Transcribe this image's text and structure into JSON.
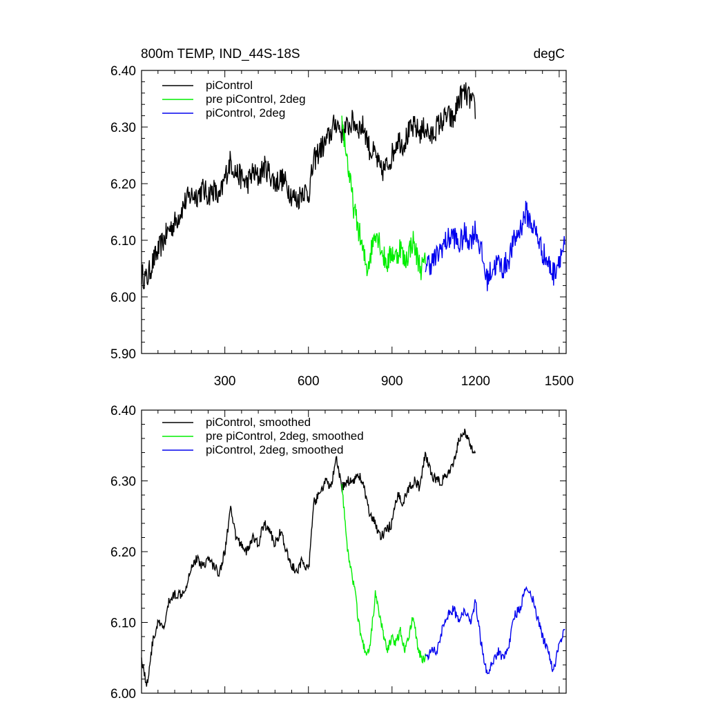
{
  "figure": {
    "title_left": "800m TEMP, IND_44S-18S",
    "title_right": "degC"
  },
  "colors": {
    "piControl": "#000000",
    "pre": "#00ee00",
    "twodeg": "#0000ee"
  },
  "chart_data": [
    {
      "type": "line",
      "title": "800m TEMP, IND_44S-18S",
      "units": "degC",
      "xlim": [
        1,
        1525
      ],
      "ylim": [
        5.9,
        6.4
      ],
      "xticks": [
        300,
        600,
        900,
        1200,
        1500
      ],
      "yticks": [
        "5.90",
        "6.00",
        "6.10",
        "6.20",
        "6.30",
        "6.40"
      ],
      "legend_position": "top-left",
      "series": [
        {
          "name": "piControl",
          "color": "#000000",
          "x": [
            1,
            20,
            40,
            60,
            80,
            100,
            120,
            140,
            160,
            180,
            200,
            220,
            240,
            260,
            280,
            300,
            320,
            340,
            360,
            380,
            400,
            420,
            440,
            460,
            480,
            500,
            520,
            540,
            560,
            580,
            600,
            620,
            640,
            660,
            680,
            700,
            720,
            740,
            760,
            780,
            800,
            820,
            840,
            860,
            880,
            900,
            920,
            940,
            960,
            980,
            1000,
            1020,
            1040,
            1060,
            1080,
            1100,
            1120,
            1140,
            1160,
            1180,
            1200
          ],
          "values": [
            6.04,
            6.03,
            6.06,
            6.08,
            6.1,
            6.12,
            6.13,
            6.15,
            6.17,
            6.18,
            6.18,
            6.19,
            6.18,
            6.19,
            6.17,
            6.21,
            6.24,
            6.22,
            6.21,
            6.2,
            6.22,
            6.21,
            6.23,
            6.22,
            6.2,
            6.21,
            6.2,
            6.18,
            6.17,
            6.19,
            6.18,
            6.24,
            6.26,
            6.27,
            6.29,
            6.31,
            6.29,
            6.3,
            6.31,
            6.3,
            6.3,
            6.26,
            6.25,
            6.22,
            6.23,
            6.25,
            6.28,
            6.27,
            6.29,
            6.3,
            6.29,
            6.3,
            6.28,
            6.3,
            6.31,
            6.32,
            6.31,
            6.35,
            6.36,
            6.35,
            6.33
          ]
        },
        {
          "name": "pre piControl, 2deg",
          "color": "#00ee00",
          "x": [
            720,
            735,
            750,
            765,
            780,
            795,
            810,
            825,
            840,
            855,
            870,
            885,
            900,
            915,
            930,
            945,
            960,
            975,
            990,
            1005,
            1020
          ],
          "values": [
            6.31,
            6.26,
            6.2,
            6.15,
            6.12,
            6.08,
            6.05,
            6.08,
            6.12,
            6.1,
            6.07,
            6.06,
            6.08,
            6.07,
            6.09,
            6.06,
            6.08,
            6.1,
            6.07,
            6.05,
            6.06
          ]
        },
        {
          "name": "piControl, 2deg",
          "color": "#0000ee",
          "x": [
            1020,
            1040,
            1060,
            1080,
            1100,
            1120,
            1140,
            1160,
            1180,
            1200,
            1220,
            1240,
            1260,
            1280,
            1300,
            1320,
            1340,
            1360,
            1380,
            1400,
            1420,
            1440,
            1460,
            1480,
            1500,
            1520
          ],
          "values": [
            6.06,
            6.06,
            6.07,
            6.09,
            6.1,
            6.11,
            6.09,
            6.11,
            6.1,
            6.12,
            6.08,
            6.03,
            6.05,
            6.06,
            6.05,
            6.07,
            6.1,
            6.12,
            6.15,
            6.13,
            6.11,
            6.08,
            6.06,
            6.04,
            6.07,
            6.09
          ]
        }
      ]
    },
    {
      "type": "line",
      "xlim": [
        1,
        1525
      ],
      "ylim": [
        6.0,
        6.4
      ],
      "yticks": [
        "6.00",
        "6.10",
        "6.20",
        "6.30",
        "6.40"
      ],
      "legend_position": "top-left",
      "series": [
        {
          "name": "piControl, smoothed",
          "color": "#000000",
          "x": [
            1,
            20,
            40,
            60,
            80,
            100,
            120,
            140,
            160,
            180,
            200,
            220,
            240,
            260,
            280,
            300,
            320,
            340,
            360,
            380,
            400,
            420,
            440,
            460,
            480,
            500,
            520,
            540,
            560,
            580,
            600,
            620,
            640,
            660,
            680,
            700,
            720,
            740,
            760,
            780,
            800,
            820,
            840,
            860,
            880,
            900,
            920,
            940,
            960,
            980,
            1000,
            1020,
            1040,
            1060,
            1080,
            1100,
            1120,
            1140,
            1160,
            1180,
            1200
          ],
          "values": [
            6.05,
            6.01,
            6.07,
            6.1,
            6.09,
            6.13,
            6.14,
            6.14,
            6.15,
            6.18,
            6.19,
            6.18,
            6.19,
            6.18,
            6.17,
            6.2,
            6.26,
            6.22,
            6.21,
            6.2,
            6.22,
            6.21,
            6.24,
            6.23,
            6.21,
            6.23,
            6.2,
            6.18,
            6.17,
            6.19,
            6.17,
            6.27,
            6.28,
            6.3,
            6.29,
            6.33,
            6.29,
            6.3,
            6.3,
            6.31,
            6.29,
            6.25,
            6.24,
            6.22,
            6.23,
            6.24,
            6.28,
            6.27,
            6.29,
            6.3,
            6.29,
            6.34,
            6.31,
            6.3,
            6.3,
            6.31,
            6.32,
            6.36,
            6.37,
            6.35,
            6.34
          ]
        },
        {
          "name": "pre piControl, 2deg, smoothed",
          "color": "#00ee00",
          "x": [
            720,
            735,
            750,
            765,
            780,
            795,
            810,
            825,
            840,
            855,
            870,
            885,
            900,
            915,
            930,
            945,
            960,
            975,
            990,
            1005,
            1020
          ],
          "values": [
            6.3,
            6.22,
            6.18,
            6.15,
            6.1,
            6.07,
            6.05,
            6.08,
            6.14,
            6.11,
            6.08,
            6.06,
            6.08,
            6.07,
            6.09,
            6.06,
            6.08,
            6.11,
            6.07,
            6.05,
            6.05
          ]
        },
        {
          "name": "piControl, 2deg, smoothed",
          "color": "#0000ee",
          "x": [
            1020,
            1040,
            1060,
            1080,
            1100,
            1120,
            1140,
            1160,
            1180,
            1200,
            1220,
            1240,
            1260,
            1280,
            1300,
            1320,
            1340,
            1360,
            1380,
            1400,
            1420,
            1440,
            1460,
            1480,
            1500,
            1520
          ],
          "values": [
            6.05,
            6.06,
            6.06,
            6.09,
            6.11,
            6.12,
            6.1,
            6.12,
            6.1,
            6.13,
            6.07,
            6.03,
            6.04,
            6.06,
            6.05,
            6.07,
            6.11,
            6.12,
            6.15,
            6.14,
            6.11,
            6.08,
            6.06,
            6.03,
            6.07,
            6.09
          ]
        }
      ]
    }
  ]
}
